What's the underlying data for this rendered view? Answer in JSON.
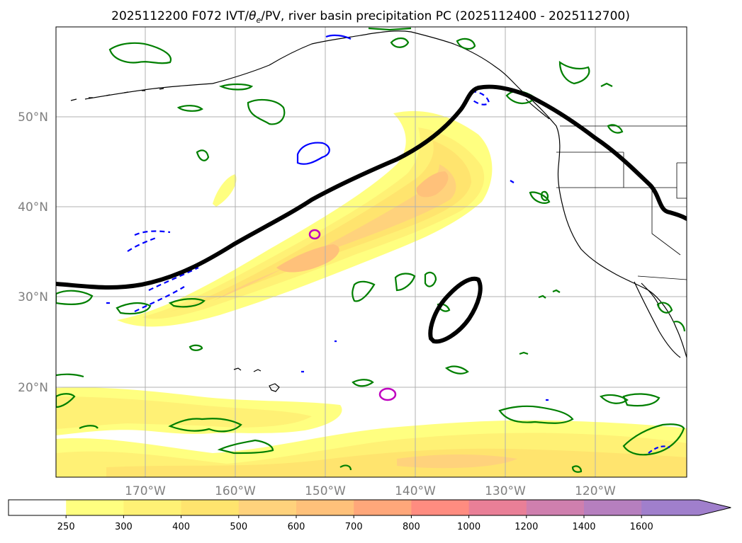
{
  "title": "2025112200 F072 IVT/θe/PV, river basin precipitation PC (2025112400 - 2025112700)",
  "title_parts": {
    "prefix": "2025112200 F072 IVT/",
    "theta": "θ",
    "sub": "e",
    "suffix": "/PV, river basin precipitation PC (2025112400 - 2025112700)"
  },
  "map": {
    "lat_labels": [
      "50°N",
      "40°N",
      "30°N",
      "20°N"
    ],
    "lon_labels": [
      "170°W",
      "160°W",
      "150°W",
      "140°W",
      "130°W",
      "120°W"
    ],
    "ocean_color": "#ffffff",
    "coast_color": "#000000",
    "grid_color": "#b0b0b0"
  },
  "colorbar": {
    "ticks": [
      "250",
      "300",
      "400",
      "500",
      "600",
      "700",
      "800",
      "1000",
      "1200",
      "1400",
      "1600"
    ],
    "colors": [
      "#ffffff",
      "#ffff80",
      "#fff175",
      "#ffe46e",
      "#ffd27c",
      "#ffc17a",
      "#ffa77a",
      "#ff8c80",
      "#e97f97",
      "#cf7fae",
      "#b67fbf",
      "#a07fcc"
    ],
    "extend": "max"
  },
  "chart_data": {
    "type": "map",
    "title": "2025112200 F072 IVT/θe/PV, river basin precipitation PC (2025112400 - 2025112700)",
    "extent": {
      "lon": [
        -180,
        -110
      ],
      "lat": [
        10,
        60
      ]
    },
    "fields": {
      "ivt_fill_levels": [
        250,
        300,
        400,
        500,
        600,
        700,
        800,
        1000,
        1200,
        1400,
        1600
      ],
      "pv_contour_black": "thick black line (2 PVU) from 31N 180W to 53N 133W to 39N 110W plus closed ellipse near 29N 136W",
      "theta_e_contour_magenta": "small closed contours near 37N 151W and 19N 143W",
      "precip_pc_green": "green closed contours",
      "precip_pc_blue": "blue contours (solid and dashed)"
    }
  }
}
